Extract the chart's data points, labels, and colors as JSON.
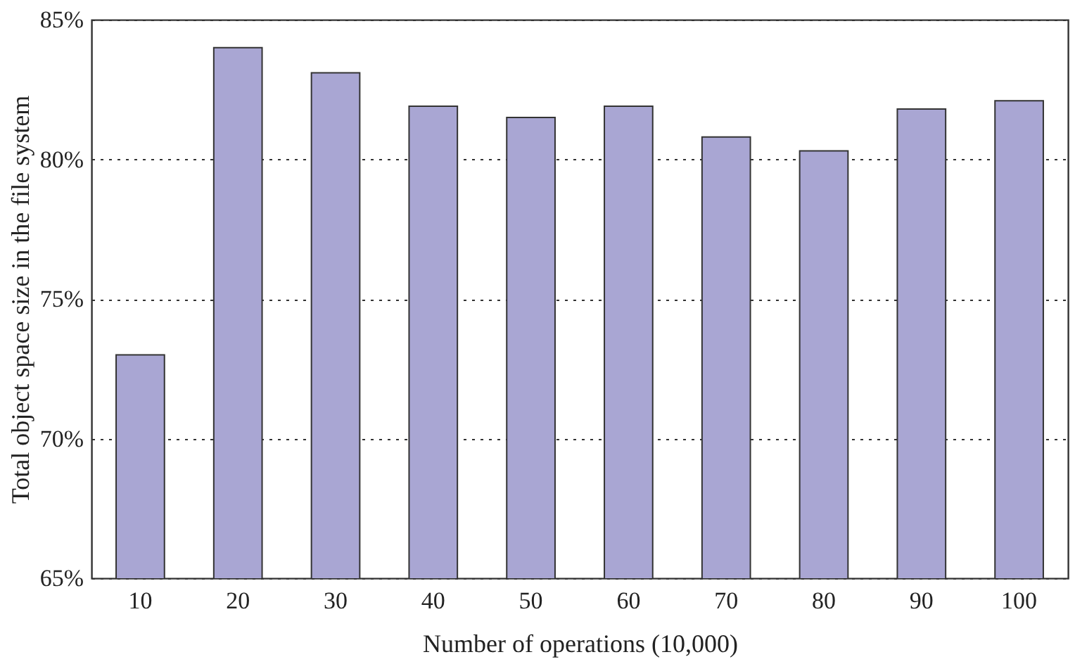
{
  "chart_data": {
    "type": "bar",
    "xlabel": "Number of operations (10,000)",
    "ylabel": "Total object space size in the file system",
    "categories": [
      "10",
      "20",
      "30",
      "40",
      "50",
      "60",
      "70",
      "80",
      "90",
      "100"
    ],
    "series": [
      {
        "color": "#a9a6d3",
        "values": [
          73.0,
          84.0,
          83.1,
          81.9,
          81.5,
          81.9,
          80.8,
          80.3,
          81.8,
          82.1
        ]
      }
    ],
    "ylim": [
      65,
      85
    ],
    "yticks": [
      {
        "value": 65,
        "label": "65%"
      },
      {
        "value": 70,
        "label": "70%"
      },
      {
        "value": 75,
        "label": "75%"
      },
      {
        "value": 80,
        "label": "80%"
      },
      {
        "value": 85,
        "label": "85%"
      }
    ],
    "grid": "y",
    "legend": false
  }
}
